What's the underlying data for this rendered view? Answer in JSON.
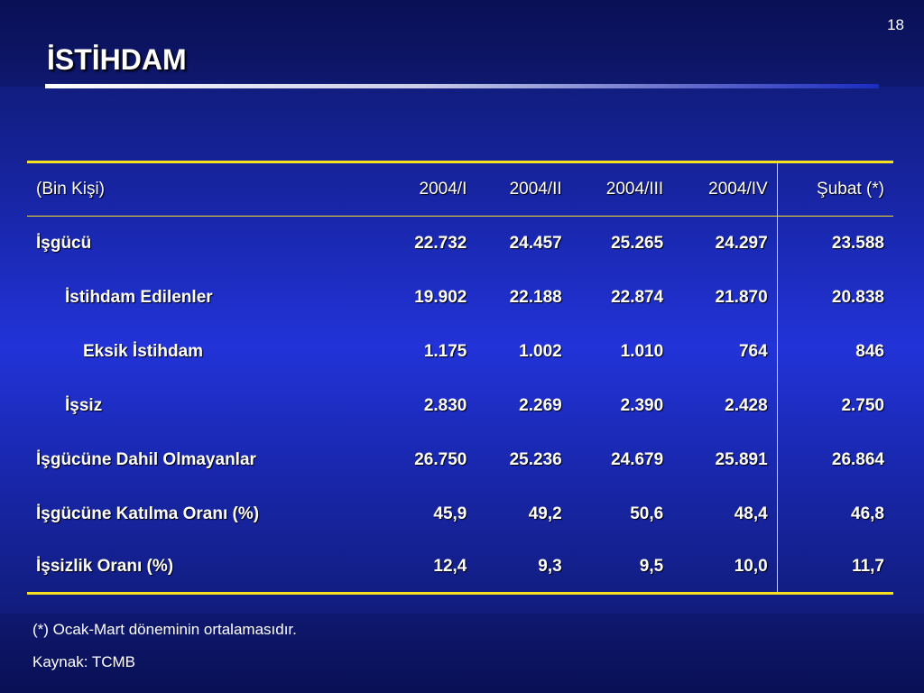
{
  "slide": {
    "page_number": "18",
    "title": "İSTİHDAM"
  },
  "table": {
    "headers": [
      "(Bin Kişi)",
      "2004/I",
      "2004/II",
      "2004/III",
      "2004/IV",
      "Şubat (*)"
    ],
    "rows": [
      {
        "label": "İşgücü",
        "values": [
          "22.732",
          "24.457",
          "25.265",
          "24.297",
          "23.588"
        ]
      },
      {
        "label": "İstihdam Edilenler",
        "values": [
          "19.902",
          "22.188",
          "22.874",
          "21.870",
          "20.838"
        ]
      },
      {
        "label": "Eksik İstihdam",
        "values": [
          "1.175",
          "1.002",
          "1.010",
          "764",
          "846"
        ]
      },
      {
        "label": "İşsiz",
        "values": [
          "2.830",
          "2.269",
          "2.390",
          "2.428",
          "2.750"
        ]
      },
      {
        "label": "İşgücüne Dahil Olmayanlar",
        "values": [
          "26.750",
          "25.236",
          "24.679",
          "25.891",
          "26.864"
        ]
      },
      {
        "label": "İşgücüne Katılma Oranı (%)",
        "values": [
          "45,9",
          "49,2",
          "50,6",
          "48,4",
          "46,8"
        ]
      },
      {
        "label": "İşsizlik Oranı (%)",
        "values": [
          "12,4",
          "9,3",
          "9,5",
          "10,0",
          "11,7"
        ]
      }
    ]
  },
  "footnotes": {
    "note": "(*) Ocak-Mart döneminin ortalamasıdır.",
    "source": "Kaynak: TCMB"
  },
  "colors": {
    "background": "#1c2bc4",
    "rule": "#f5e11e",
    "text": "#ffffff"
  }
}
